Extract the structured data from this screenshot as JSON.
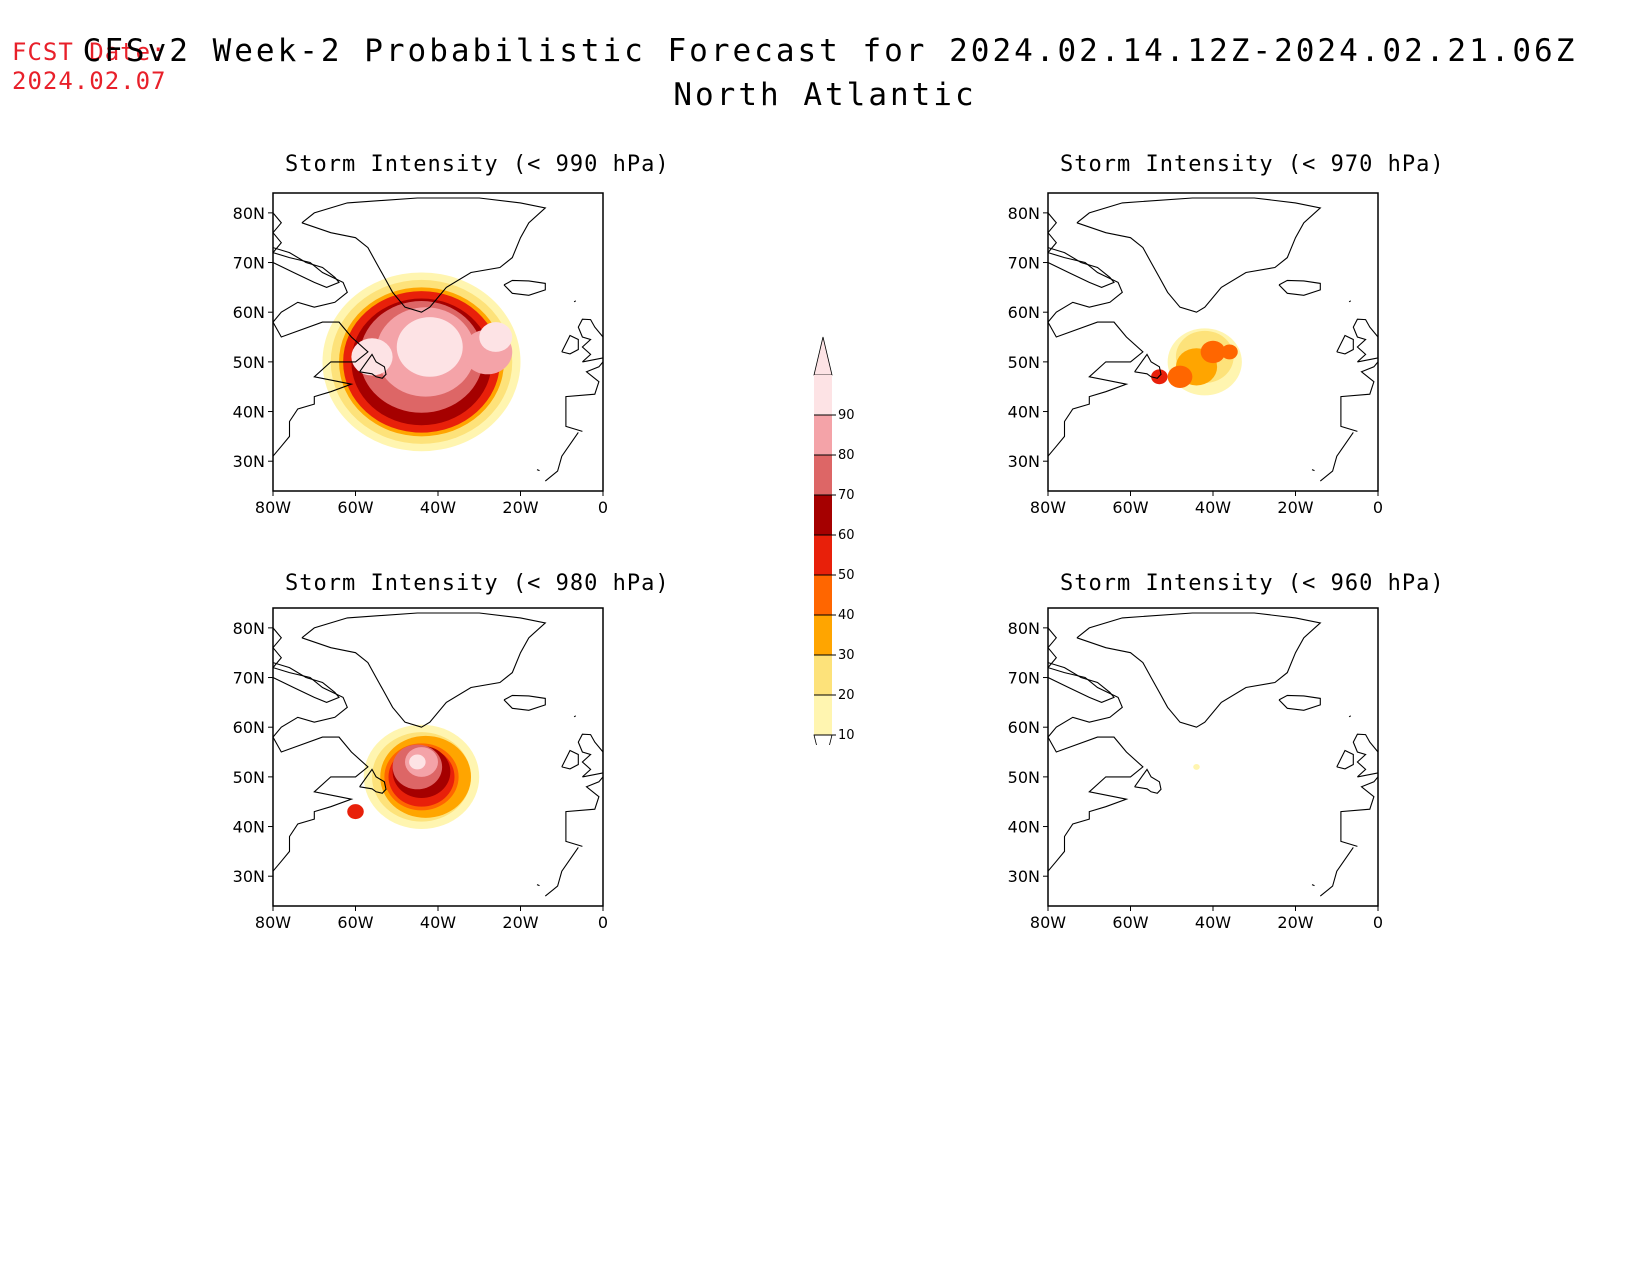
{
  "header": {
    "fcst_label": "FCST Date:",
    "fcst_date": "2024.02.07",
    "title": "CFSv2 Week-2 Probabilistic Forecast for 2024.02.14.12Z-2024.02.21.06Z",
    "subtitle": "North Atlantic"
  },
  "axes": {
    "lat_labels": [
      "80N",
      "70N",
      "60N",
      "50N",
      "40N",
      "30N"
    ],
    "lon_labels": [
      "80W",
      "60W",
      "40W",
      "20W",
      "0"
    ]
  },
  "panels": [
    {
      "id": "p990",
      "title": "Storm Intensity (< 990 hPa)"
    },
    {
      "id": "p970",
      "title": "Storm Intensity (< 970 hPa)"
    },
    {
      "id": "p980",
      "title": "Storm Intensity (< 980 hPa)"
    },
    {
      "id": "p960",
      "title": "Storm Intensity (< 960 hPa)"
    }
  ],
  "colorbar": {
    "levels": [
      "10",
      "20",
      "30",
      "40",
      "50",
      "60",
      "70",
      "80",
      "90"
    ],
    "colors": [
      "#fff5b0",
      "#fde27a",
      "#ffa500",
      "#ff6600",
      "#e8200a",
      "#a50000",
      "#dd6666",
      "#f4a3a8",
      "#fde3e5"
    ]
  }
}
